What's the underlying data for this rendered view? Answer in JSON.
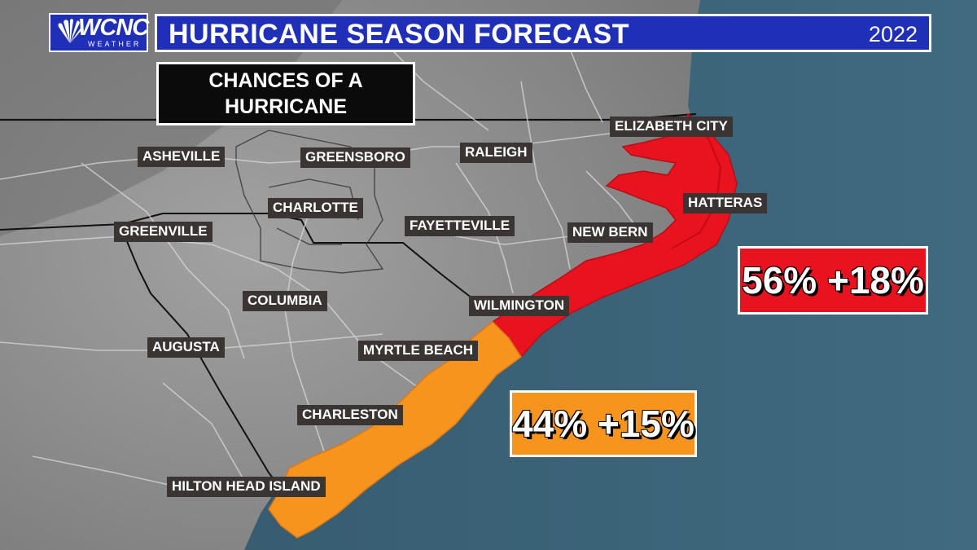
{
  "header": {
    "title": "HURRICANE SEASON FORECAST",
    "year": "2022"
  },
  "logo": {
    "name": "WCNC",
    "sub": "WEATHER"
  },
  "subtitle": {
    "line1": "CHANCES OF A",
    "line2": "HURRICANE"
  },
  "cities": {
    "elizabeth_city": "ELIZABETH CITY",
    "asheville": "ASHEVILLE",
    "greensboro": "GREENSBORO",
    "raleigh": "RALEIGH",
    "charlotte": "CHARLOTTE",
    "hatteras": "HATTERAS",
    "greenville": "GREENVILLE",
    "fayetteville": "FAYETTEVILLE",
    "new_bern": "NEW BERN",
    "columbia": "COLUMBIA",
    "wilmington": "WILMINGTON",
    "augusta": "AUGUSTA",
    "myrtle_beach": "MYRTLE BEACH",
    "charleston": "CHARLESTON",
    "hilton_head": "HILTON HEAD ISLAND"
  },
  "zones": {
    "north": {
      "label": "56% +18%",
      "chance_pct": 56,
      "change_pct": 18,
      "color": "#e8131f"
    },
    "south": {
      "label": "44% +15%",
      "chance_pct": 44,
      "change_pct": 15,
      "color": "#f7941d"
    }
  },
  "colors": {
    "land": "#8f8f8f",
    "ocean": "#3d6478",
    "header_blue": "#1f2fb8"
  }
}
